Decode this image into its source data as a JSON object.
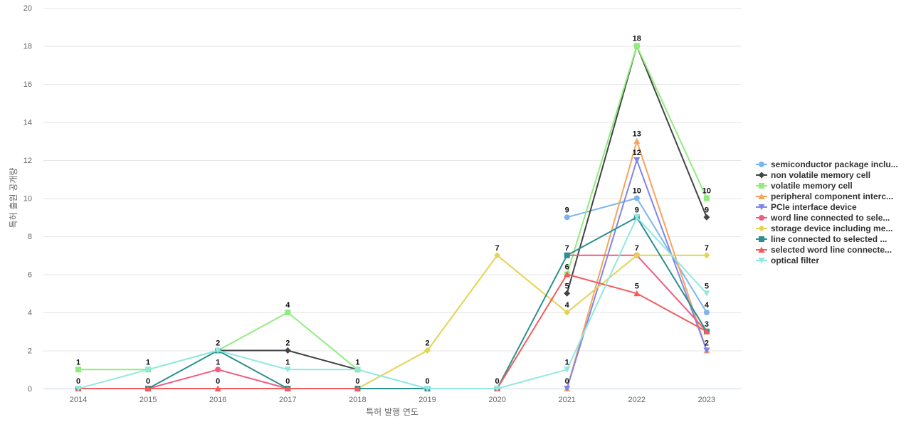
{
  "chart_data": {
    "type": "line",
    "title": "",
    "xlabel": "특허 발행 연도",
    "ylabel": "특허 출원 공개량",
    "ylim": [
      0,
      20
    ],
    "yticks": [
      0,
      2,
      4,
      6,
      8,
      10,
      12,
      14,
      16,
      18,
      20
    ],
    "grid": true,
    "legend_position": "right",
    "x": [
      "2014",
      "2015",
      "2016",
      "2017",
      "2018",
      "2019",
      "2020",
      "2021",
      "2022",
      "2023"
    ],
    "series": [
      {
        "name": "semiconductor package inclu...",
        "color": "#7cb5ec",
        "marker": "circle",
        "values": [
          null,
          null,
          2,
          null,
          null,
          null,
          null,
          9,
          10,
          4
        ]
      },
      {
        "name": "non volatile memory cell",
        "color": "#434348",
        "marker": "diamond",
        "values": [
          null,
          null,
          2,
          2,
          1,
          null,
          null,
          5,
          18,
          9
        ]
      },
      {
        "name": "volatile memory cell",
        "color": "#90ed7d",
        "marker": "square",
        "values": [
          1,
          1,
          2,
          4,
          1,
          null,
          null,
          6,
          18,
          10
        ]
      },
      {
        "name": "peripheral component interc...",
        "color": "#f7a35c",
        "marker": "triangle",
        "values": [
          null,
          null,
          null,
          null,
          null,
          null,
          null,
          0,
          13,
          2
        ]
      },
      {
        "name": "PCIe interface device",
        "color": "#8085e9",
        "marker": "triangle-down",
        "values": [
          null,
          null,
          null,
          null,
          null,
          null,
          null,
          0,
          12,
          2
        ]
      },
      {
        "name": "word line connected to sele...",
        "color": "#f15c80",
        "marker": "circle",
        "values": [
          0,
          0,
          1,
          0,
          0,
          null,
          null,
          7,
          7,
          3
        ]
      },
      {
        "name": "storage device including me...",
        "color": "#e4d354",
        "marker": "diamond",
        "values": [
          null,
          null,
          null,
          null,
          0,
          2,
          7,
          4,
          7,
          7
        ]
      },
      {
        "name": "line connected to selected ...",
        "color": "#2b908f",
        "marker": "square",
        "values": [
          0,
          0,
          2,
          0,
          0,
          0,
          0,
          7,
          9,
          3
        ]
      },
      {
        "name": "selected word line connecte...",
        "color": "#f45b5b",
        "marker": "triangle",
        "values": [
          0,
          0,
          0,
          0,
          0,
          null,
          0,
          6,
          5,
          3
        ]
      },
      {
        "name": "optical filter",
        "color": "#91e8e1",
        "marker": "triangle-down",
        "values": [
          0,
          1,
          2,
          1,
          1,
          0,
          0,
          1,
          9,
          5
        ]
      }
    ],
    "data_labels": [
      {
        "x": "2014",
        "text": "1",
        "y": 1
      },
      {
        "x": "2014",
        "text": "0",
        "y": 0
      },
      {
        "x": "2015",
        "text": "1",
        "y": 1
      },
      {
        "x": "2015",
        "text": "0",
        "y": 0
      },
      {
        "x": "2016",
        "text": "2",
        "y": 2
      },
      {
        "x": "2016",
        "text": "1",
        "y": 1
      },
      {
        "x": "2016",
        "text": "0",
        "y": 0
      },
      {
        "x": "2017",
        "text": "4",
        "y": 4
      },
      {
        "x": "2017",
        "text": "2",
        "y": 2
      },
      {
        "x": "2017",
        "text": "1",
        "y": 1
      },
      {
        "x": "2017",
        "text": "0",
        "y": 0
      },
      {
        "x": "2018",
        "text": "1",
        "y": 1
      },
      {
        "x": "2018",
        "text": "0",
        "y": 0
      },
      {
        "x": "2019",
        "text": "2",
        "y": 2
      },
      {
        "x": "2019",
        "text": "0",
        "y": 0
      },
      {
        "x": "2020",
        "text": "7",
        "y": 7
      },
      {
        "x": "2020",
        "text": "0",
        "y": 0
      },
      {
        "x": "2021",
        "text": "9",
        "y": 9
      },
      {
        "x": "2021",
        "text": "7",
        "y": 7
      },
      {
        "x": "2021",
        "text": "6",
        "y": 6
      },
      {
        "x": "2021",
        "text": "5",
        "y": 5
      },
      {
        "x": "2021",
        "text": "4",
        "y": 4
      },
      {
        "x": "2021",
        "text": "1",
        "y": 1
      },
      {
        "x": "2021",
        "text": "0",
        "y": 0
      },
      {
        "x": "2022",
        "text": "18",
        "y": 18
      },
      {
        "x": "2022",
        "text": "13",
        "y": 13
      },
      {
        "x": "2022",
        "text": "12",
        "y": 12
      },
      {
        "x": "2022",
        "text": "10",
        "y": 10
      },
      {
        "x": "2022",
        "text": "9",
        "y": 9
      },
      {
        "x": "2022",
        "text": "7",
        "y": 7
      },
      {
        "x": "2022",
        "text": "5",
        "y": 5
      },
      {
        "x": "2023",
        "text": "10",
        "y": 10
      },
      {
        "x": "2023",
        "text": "9",
        "y": 9
      },
      {
        "x": "2023",
        "text": "7",
        "y": 7
      },
      {
        "x": "2023",
        "text": "5",
        "y": 5
      },
      {
        "x": "2023",
        "text": "4",
        "y": 4
      },
      {
        "x": "2023",
        "text": "3",
        "y": 3
      },
      {
        "x": "2023",
        "text": "2",
        "y": 2
      }
    ]
  }
}
